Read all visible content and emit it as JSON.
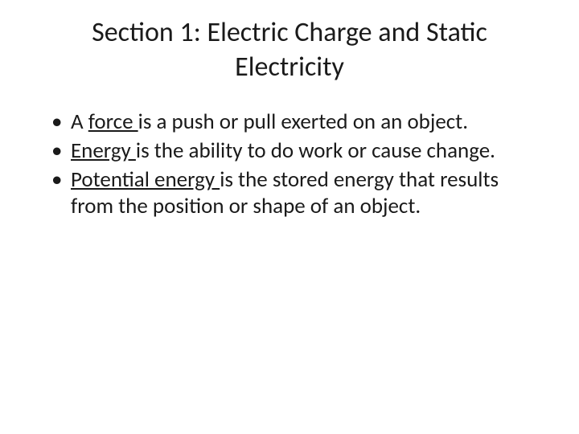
{
  "slide": {
    "title": "Section 1: Electric Charge and Static Electricity",
    "bullets": [
      {
        "prefix": "A ",
        "keyword": "force ",
        "suffix": "is a push or pull exerted on an object."
      },
      {
        "prefix": "",
        "keyword": "Energy ",
        "suffix": "is the ability to do work or cause change."
      },
      {
        "prefix": "",
        "keyword": "Potential energy ",
        "suffix": "is the stored energy that results from the position or shape of an object."
      }
    ],
    "colors": {
      "background": "#ffffff",
      "text": "#1a1a1a"
    },
    "typography": {
      "title_fontsize": 34,
      "body_fontsize": 27,
      "font_family": "Calibri"
    }
  }
}
